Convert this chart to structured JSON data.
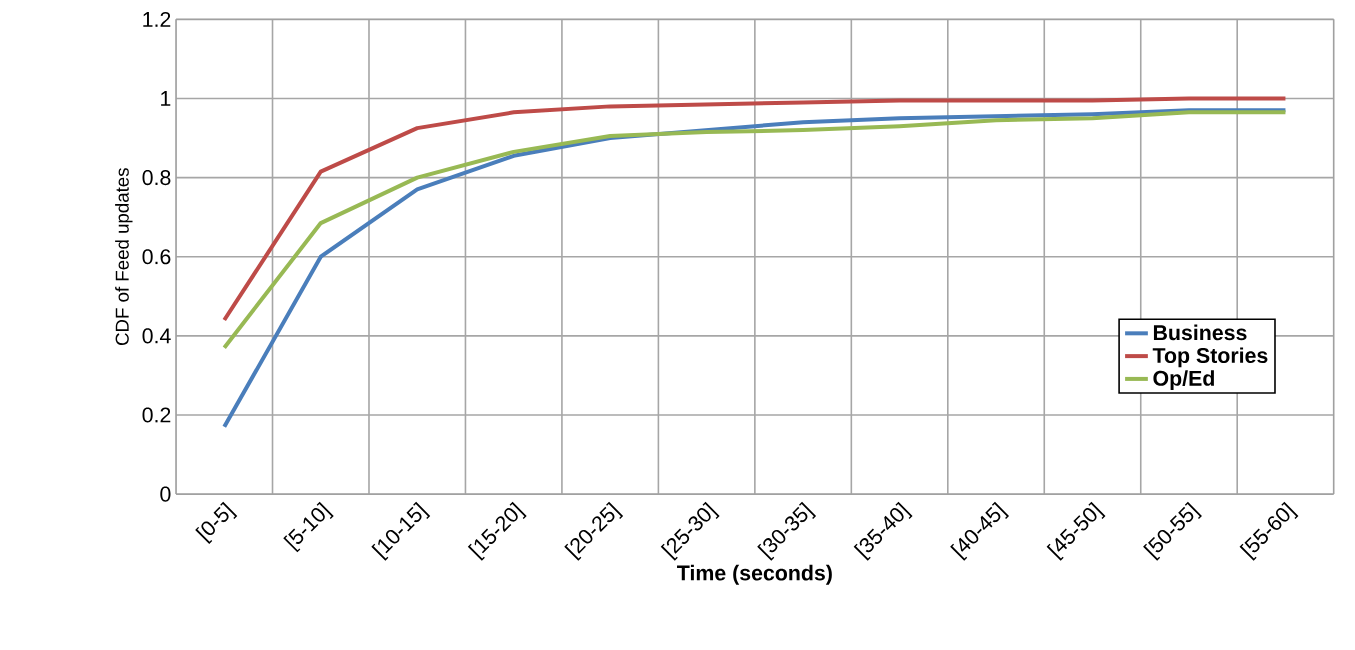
{
  "chart_data": {
    "type": "line",
    "xlabel": "Time (seconds)",
    "ylabel": "CDF of Feed updates",
    "categories": [
      "[0-5]",
      "[5-10]",
      "[10-15]",
      "[15-20]",
      "[20-25]",
      "[25-30]",
      "[30-35]",
      "[35-40]",
      "[40-45]",
      "[45-50]",
      "[50-55]",
      "[55-60]"
    ],
    "series": [
      {
        "name": "Business",
        "color": "#4a7ebb",
        "values": [
          0.17,
          0.6,
          0.77,
          0.855,
          0.9,
          0.92,
          0.94,
          0.95,
          0.955,
          0.96,
          0.97,
          0.97
        ]
      },
      {
        "name": "Top Stories",
        "color": "#be4b48",
        "values": [
          0.44,
          0.815,
          0.925,
          0.965,
          0.98,
          0.985,
          0.99,
          0.995,
          0.995,
          0.995,
          1.0,
          1.0
        ]
      },
      {
        "name": "Op/Ed",
        "color": "#98b954",
        "values": [
          0.37,
          0.685,
          0.8,
          0.865,
          0.905,
          0.915,
          0.92,
          0.93,
          0.945,
          0.95,
          0.965,
          0.965
        ]
      }
    ],
    "ylim": [
      0,
      1.2
    ],
    "yticks": [
      0,
      0.2,
      0.4,
      0.6,
      0.8,
      1,
      1.2
    ],
    "grid": true,
    "legend": "right",
    "marker": "none",
    "line_style": "solid"
  }
}
